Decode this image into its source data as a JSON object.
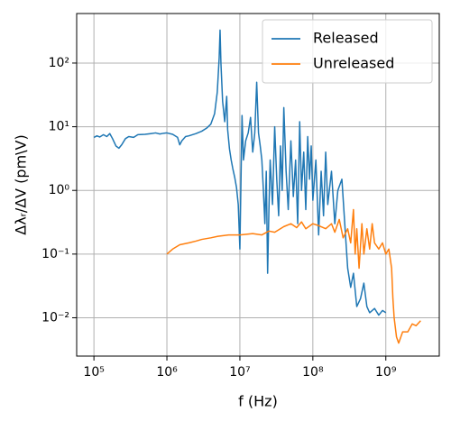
{
  "chart_data": {
    "type": "line",
    "xlabel": "f (Hz)",
    "ylabel": "Δλᵣ/ΔV (pm\\V)",
    "xscale": "log",
    "yscale": "log",
    "grid": true,
    "legend": "upper right",
    "xlim": [
      58000,
      5400000000
    ],
    "ylim": [
      0.0025,
      600
    ],
    "xticks": [
      {
        "value": 100000,
        "label": "10⁵"
      },
      {
        "value": 1000000,
        "label": "10⁶"
      },
      {
        "value": 10000000,
        "label": "10⁷"
      },
      {
        "value": 100000000,
        "label": "10⁸"
      },
      {
        "value": 1000000000,
        "label": "10⁹"
      }
    ],
    "yticks": [
      {
        "value": 0.01,
        "label": "10⁻²"
      },
      {
        "value": 0.1,
        "label": "10⁻¹"
      },
      {
        "value": 1,
        "label": "10⁰"
      },
      {
        "value": 10,
        "label": "10¹"
      },
      {
        "value": 100,
        "label": "10²"
      }
    ],
    "series": [
      {
        "name": "Released",
        "color": "#1f77b4",
        "x": [
          100000.0,
          110000.0,
          120000.0,
          135000.0,
          150000.0,
          165000.0,
          180000.0,
          200000.0,
          220000.0,
          240000.0,
          270000.0,
          300000.0,
          350000.0,
          400000.0,
          500000.0,
          600000.0,
          700000.0,
          800000.0,
          900000.0,
          1000000.0,
          1200000.0,
          1400000.0,
          1500000.0,
          1600000.0,
          1800000.0,
          2000000.0,
          2500000.0,
          3000000.0,
          3500000.0,
          4000000.0,
          4500000.0,
          4900000.0,
          5200000.0,
          5350000.0,
          5500000.0,
          5800000.0,
          6200000.0,
          6600000.0,
          6800000.0,
          7200000.0,
          7600000.0,
          8000000.0,
          8500000.0,
          9000000.0,
          9500000.0,
          10000000.0,
          10300000.0,
          10700000.0,
          11200000.0,
          12000000.0,
          13000000.0,
          14000000.0,
          15000000.0,
          16000000.0,
          17000000.0,
          18000000.0,
          19000000.0,
          20000000.0,
          21000000.0,
          22000000.0,
          23000000.0,
          24000000.0,
          25000000.0,
          26000000.0,
          28000000.0,
          30000000.0,
          32000000.0,
          34000000.0,
          36000000.0,
          38000000.0,
          40000000.0,
          43000000.0,
          46000000.0,
          50000000.0,
          54000000.0,
          58000000.0,
          62000000.0,
          66000000.0,
          70000000.0,
          75000000.0,
          80000000.0,
          85000000.0,
          90000000.0,
          95000000.0,
          100000000.0,
          110000000.0,
          120000000.0,
          130000000.0,
          140000000.0,
          150000000.0,
          160000000.0,
          180000000.0,
          200000000.0,
          220000000.0,
          250000000.0,
          280000000.0,
          300000000.0,
          330000000.0,
          360000000.0,
          400000000.0,
          450000000.0,
          500000000.0,
          550000000.0,
          600000000.0,
          700000000.0,
          800000000.0,
          900000000.0,
          1000000000.0
        ],
        "values": [
          6.8,
          7.2,
          6.9,
          7.5,
          7.0,
          7.8,
          6.5,
          5.0,
          4.6,
          5.2,
          6.5,
          7.0,
          6.8,
          7.5,
          7.6,
          7.8,
          8.0,
          7.7,
          7.9,
          8.0,
          7.6,
          6.8,
          5.2,
          6.0,
          7.0,
          7.2,
          7.8,
          8.5,
          9.5,
          11,
          16,
          35,
          120,
          330,
          100,
          25,
          12,
          30,
          9,
          4.5,
          3,
          2.2,
          1.6,
          1.1,
          0.6,
          0.12,
          1,
          15,
          3,
          6,
          8,
          14,
          4,
          8,
          50,
          8,
          5,
          3,
          1,
          0.3,
          2,
          0.05,
          0.5,
          3,
          0.6,
          10,
          1.5,
          0.4,
          5,
          1,
          20,
          2,
          0.5,
          6,
          0.8,
          3,
          0.3,
          12,
          1,
          4,
          0.5,
          7,
          1.5,
          5,
          0.7,
          3,
          0.2,
          2,
          0.4,
          4,
          0.6,
          2,
          0.3,
          1,
          1.5,
          0.2,
          0.06,
          0.03,
          0.05,
          0.015,
          0.02,
          0.035,
          0.015,
          0.012,
          0.014,
          0.011,
          0.013,
          0.012
        ]
      },
      {
        "name": "Unreleased",
        "color": "#ff7f0e",
        "x": [
          1000000.0,
          1200000.0,
          1500000.0,
          2000000.0,
          2500000.0,
          3000000.0,
          4000000.0,
          5000000.0,
          7000000.0,
          10000000.0,
          15000000.0,
          20000000.0,
          25000000.0,
          30000000.0,
          40000000.0,
          50000000.0,
          60000000.0,
          70000000.0,
          80000000.0,
          100000000.0,
          120000000.0,
          150000000.0,
          180000000.0,
          200000000.0,
          230000000.0,
          260000000.0,
          300000000.0,
          330000000.0,
          360000000.0,
          380000000.0,
          400000000.0,
          430000000.0,
          470000000.0,
          500000000.0,
          550000000.0,
          600000000.0,
          650000000.0,
          700000000.0,
          800000000.0,
          900000000.0,
          1000000000.0,
          1100000000.0,
          1200000000.0,
          1250000000.0,
          1300000000.0,
          1400000000.0,
          1500000000.0,
          1700000000.0,
          2000000000.0,
          2300000000.0,
          2600000000.0,
          3000000000.0
        ],
        "values": [
          0.1,
          0.12,
          0.14,
          0.15,
          0.16,
          0.17,
          0.18,
          0.19,
          0.2,
          0.2,
          0.21,
          0.2,
          0.23,
          0.22,
          0.27,
          0.3,
          0.26,
          0.32,
          0.25,
          0.3,
          0.28,
          0.25,
          0.3,
          0.22,
          0.35,
          0.18,
          0.25,
          0.15,
          0.5,
          0.1,
          0.25,
          0.06,
          0.3,
          0.1,
          0.25,
          0.12,
          0.3,
          0.15,
          0.12,
          0.15,
          0.1,
          0.12,
          0.06,
          0.02,
          0.01,
          0.005,
          0.004,
          0.006,
          0.006,
          0.008,
          0.0075,
          0.009
        ]
      }
    ]
  }
}
